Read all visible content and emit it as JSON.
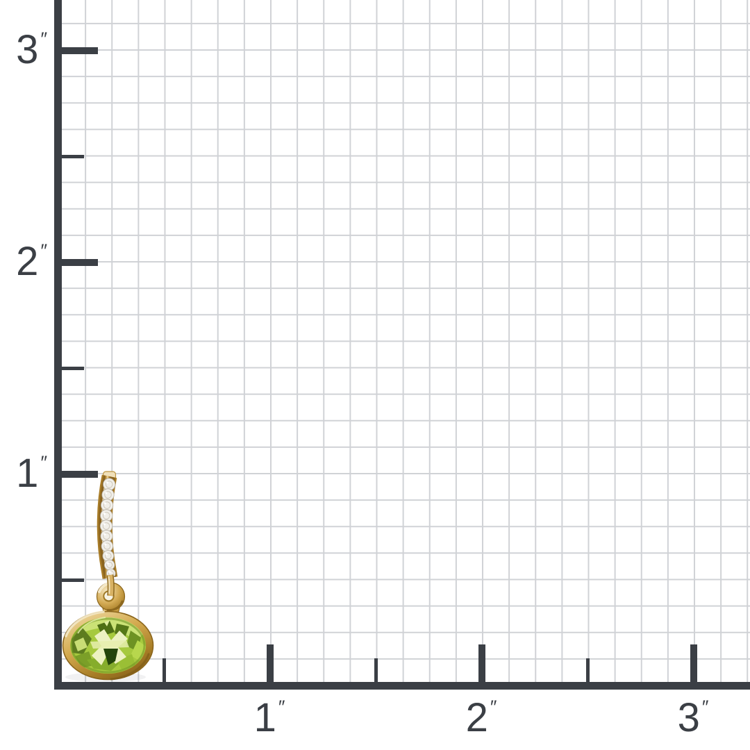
{
  "canvas": {
    "background_color": "#ffffff"
  },
  "ruler": {
    "unit_symbol": "″",
    "axis_color": "#3b3f45",
    "grid_color": "#d0d2d6",
    "grid_squares_per_inch": 8,
    "y_axis": {
      "major_ticks": [
        {
          "value": 3,
          "label": "3"
        },
        {
          "value": 2,
          "label": "2"
        },
        {
          "value": 1,
          "label": "1"
        }
      ],
      "minor_tick_values": [
        2.5,
        1.5,
        0.5
      ]
    },
    "x_axis": {
      "major_ticks": [
        {
          "value": 1,
          "label": "1"
        },
        {
          "value": 2,
          "label": "2"
        },
        {
          "value": 3,
          "label": "3"
        }
      ],
      "minor_tick_values": [
        0.5,
        1.5,
        2.5
      ]
    }
  },
  "product": {
    "type": "earring-photo",
    "parts": [
      "pave-diamond-huggie-hoop",
      "gold-bail-loop",
      "bezel-set-oval-peridot-drop"
    ],
    "approx_size_inches": {
      "drop_length": 1.0,
      "gem_width": 0.45,
      "gem_height": 0.33
    },
    "colors": {
      "gold": "#cfa14a",
      "gold_light": "#f2e2b6",
      "gold_dark": "#8a651c",
      "diamond": "#f1efe9",
      "peridot": "#a6c93e",
      "peridot_light": "#edf2c2",
      "peridot_dark": "#24450b"
    }
  }
}
